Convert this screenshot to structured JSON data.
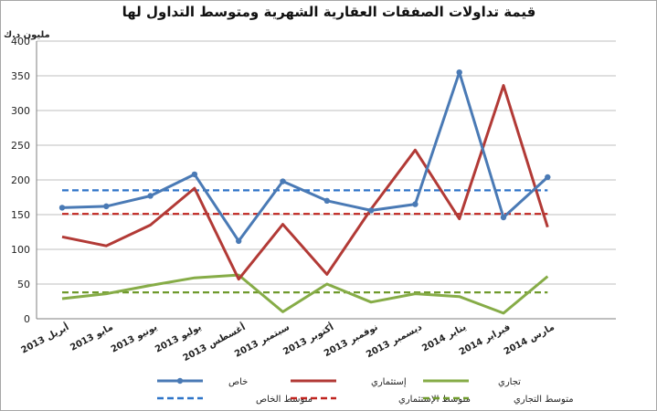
{
  "chart_data": {
    "type": "line",
    "title": "قيمة تداولات الصفقات العقارية الشهرية ومتوسط التداول لها",
    "ylabel": "مليون د.ك",
    "ylim": [
      0,
      400
    ],
    "yticks": [
      0,
      50,
      100,
      150,
      200,
      250,
      300,
      350,
      400
    ],
    "grid": true,
    "legend_position": "bottom",
    "categories": [
      "أبريل 2013",
      "مايو 2013",
      "يونيو 2013",
      "يوليو 2013",
      "أغسطس 2013",
      "سبتمبر 2013",
      "أكتوبر 2013",
      "نوفمبر 2013",
      "ديسمبر 2013",
      "يناير 2014",
      "فبراير 2014",
      "مارس 2014"
    ],
    "series": [
      {
        "name": "خاص",
        "color": "#4a7ab5",
        "style": "solid-marker",
        "values": [
          160,
          162,
          177,
          208,
          112,
          198,
          170,
          156,
          165,
          355,
          146,
          204
        ]
      },
      {
        "name": "إستثماري",
        "color": "#b23a36",
        "style": "solid",
        "values": [
          118,
          105,
          135,
          188,
          57,
          136,
          64,
          158,
          243,
          144,
          336,
          132
        ]
      },
      {
        "name": "تجاري",
        "color": "#86ac47",
        "style": "solid",
        "values": [
          29,
          36,
          48,
          59,
          63,
          10,
          50,
          24,
          36,
          32,
          8,
          61
        ]
      },
      {
        "name": "متوسط الخاص",
        "color": "#2e74c8",
        "style": "dashed",
        "values": [
          185,
          185,
          185,
          185,
          185,
          185,
          185,
          185,
          185,
          185,
          185,
          185
        ]
      },
      {
        "name": "متوسط الإستثماري",
        "color": "#c0241f",
        "style": "dashed",
        "values": [
          151,
          151,
          151,
          151,
          151,
          151,
          151,
          151,
          151,
          151,
          151,
          151
        ]
      },
      {
        "name": "متوسط التجاري",
        "color": "#6f9a2c",
        "style": "dashed",
        "values": [
          38,
          38,
          38,
          38,
          38,
          38,
          38,
          38,
          38,
          38,
          38,
          38
        ]
      }
    ]
  }
}
